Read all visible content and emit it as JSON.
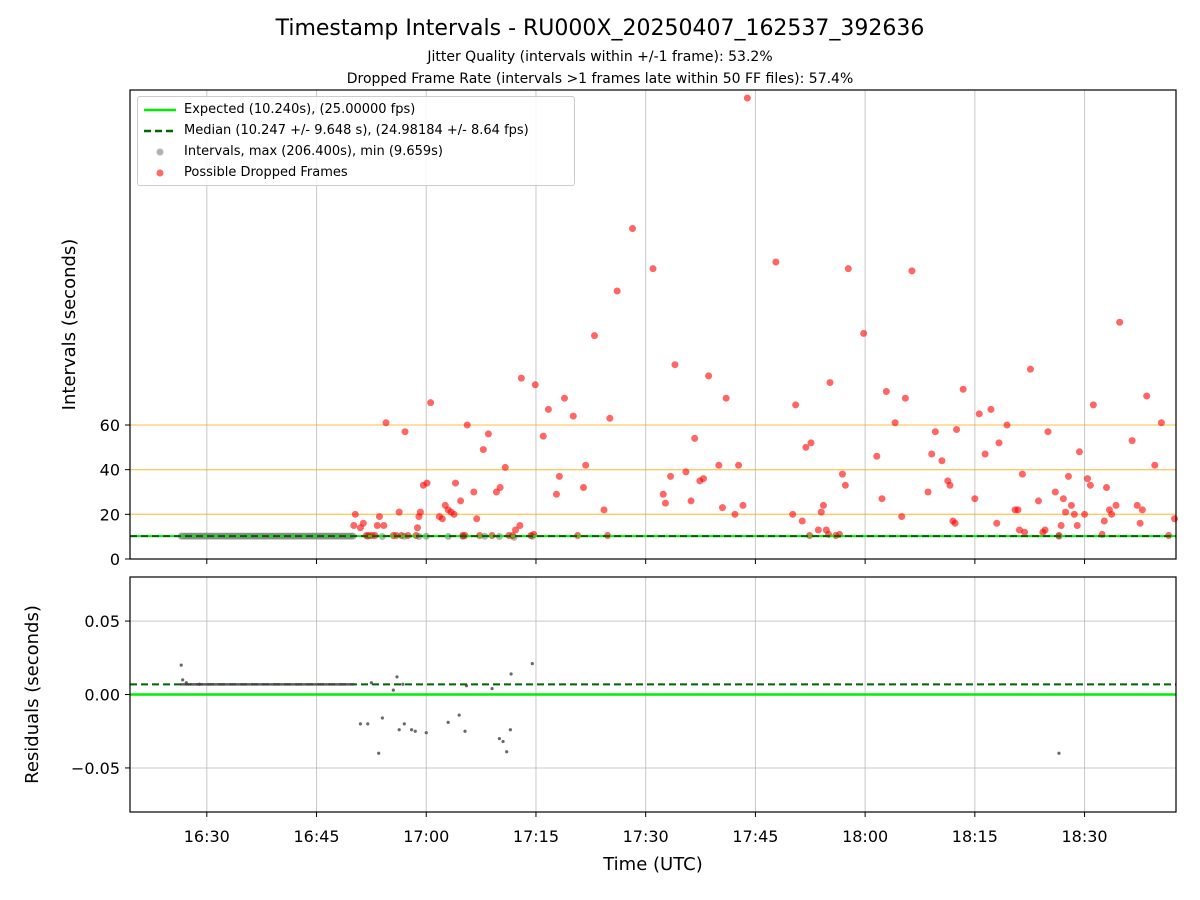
{
  "title": "Timestamp Intervals - RU000X_20250407_162537_392636",
  "subtitle1": "Jitter Quality (intervals within +/-1 frame): 53.2%",
  "subtitle2": "Dropped Frame Rate (intervals >1 frames late within 50 FF files): 57.4%",
  "colors": {
    "expected": "#00ee00",
    "median": "#006400",
    "intervals": "#808080",
    "dropped": "#ff0000",
    "threshold": "#ffa500",
    "grid": "#b0b0b0"
  },
  "legend": {
    "expected": "Expected (10.240s), (25.00000 fps)",
    "median": "Median (10.247 +/- 9.648 s), (24.98184 +/- 8.64 fps)",
    "intervals": "Intervals, max (206.400s), min (9.659s)",
    "dropped": "Possible Dropped Frames"
  },
  "chart_data": [
    {
      "type": "scatter",
      "ylabel": "Intervals (seconds)",
      "x_axis": "time of day (UTC, minutes)",
      "xlim": [
        "16:19.5",
        "18:42.5"
      ],
      "ylim": [
        0,
        210
      ],
      "yticks": [
        0,
        20,
        40,
        60
      ],
      "ytick_labels": [
        "0",
        "20",
        "40",
        "60"
      ],
      "threshold_lines": [
        20,
        40,
        60
      ],
      "expected_line": 10.24,
      "median_line": 10.247,
      "grid": true,
      "legend_position": "upper-left",
      "series": [
        {
          "name": "Intervals, max (206.400s), min (9.659s)",
          "dense_range": [
            "16:26.5",
            "16:50"
          ],
          "dense_value": 10.25,
          "points": [
            [
              "16:52",
              10.2
            ],
            [
              "16:54",
              10.1
            ],
            [
              "16:57",
              10.2
            ],
            [
              "16:59",
              10.1
            ],
            [
              "17:00",
              10.2
            ],
            [
              "17:03",
              10.1
            ],
            [
              "17:05",
              10.1
            ],
            [
              "17:08",
              10.2
            ],
            [
              "17:10",
              10.1
            ],
            [
              "17:12",
              9.7
            ],
            [
              "17:14.5",
              10.2
            ],
            [
              "18:26.5",
              10.2
            ]
          ]
        },
        {
          "name": "Possible Dropped Frames",
          "points": [
            [
              "16:50.1",
              15
            ],
            [
              "16:50.3",
              20
            ],
            [
              "16:51",
              14
            ],
            [
              "16:51.4",
              16
            ],
            [
              "16:51.8",
              10.5
            ],
            [
              "16:52.2",
              10.5
            ],
            [
              "16:52.6",
              10.5
            ],
            [
              "16:53",
              10.5
            ],
            [
              "16:53.3",
              15
            ],
            [
              "16:53.6",
              19
            ],
            [
              "16:54.2",
              15
            ],
            [
              "16:54.5",
              61
            ],
            [
              "16:55.5",
              10.5
            ],
            [
              "16:55.9",
              10.5
            ],
            [
              "16:56.3",
              21
            ],
            [
              "16:56.6",
              10.5
            ],
            [
              "16:57.1",
              57
            ],
            [
              "16:57.5",
              10.5
            ],
            [
              "16:58.6",
              10.5
            ],
            [
              "16:58.8",
              14
            ],
            [
              "16:59",
              19
            ],
            [
              "16:59.2",
              21
            ],
            [
              "16:59.6",
              33
            ],
            [
              "17:00.1",
              34
            ],
            [
              "17:00.6",
              70
            ],
            [
              "17:01.8",
              19
            ],
            [
              "17:02.2",
              18
            ],
            [
              "17:02.6",
              24
            ],
            [
              "17:03",
              22
            ],
            [
              "17:03.4",
              21
            ],
            [
              "17:03.8",
              20
            ],
            [
              "17:04",
              34
            ],
            [
              "17:04.7",
              26
            ],
            [
              "17:05",
              10.5
            ],
            [
              "17:05.3",
              10.5
            ],
            [
              "17:05.6",
              60
            ],
            [
              "17:06.5",
              30
            ],
            [
              "17:06.9",
              18
            ],
            [
              "17:07.3",
              10.5
            ],
            [
              "17:07.8",
              49
            ],
            [
              "17:08.5",
              56
            ],
            [
              "17:09",
              10.5
            ],
            [
              "17:09.6",
              30
            ],
            [
              "17:10.1",
              32
            ],
            [
              "17:10.8",
              41
            ],
            [
              "17:11.3",
              10.5
            ],
            [
              "17:11.8",
              10.5
            ],
            [
              "17:12.2",
              13
            ],
            [
              "17:12.8",
              15
            ],
            [
              "17:13",
              81
            ],
            [
              "17:14.3",
              10.5
            ],
            [
              "17:14.7",
              11
            ],
            [
              "17:14.9",
              78
            ],
            [
              "17:16",
              55
            ],
            [
              "17:16.7",
              67
            ],
            [
              "17:17.8",
              29
            ],
            [
              "17:18.2",
              37
            ],
            [
              "17:18.9",
              72
            ],
            [
              "17:20.1",
              64
            ],
            [
              "17:20.7",
              10.5
            ],
            [
              "17:21.5",
              32
            ],
            [
              "17:21.8",
              42
            ],
            [
              "17:23",
              100
            ],
            [
              "17:24.3",
              22
            ],
            [
              "17:24.8",
              10.5
            ],
            [
              "17:25.1",
              63
            ],
            [
              "17:26.1",
              120
            ],
            [
              "17:28.2",
              148
            ],
            [
              "17:31",
              130
            ],
            [
              "17:32.4",
              29
            ],
            [
              "17:32.7",
              25
            ],
            [
              "17:33.4",
              37
            ],
            [
              "17:34",
              87
            ],
            [
              "17:35.5",
              39
            ],
            [
              "17:36.2",
              26
            ],
            [
              "17:36.7",
              54
            ],
            [
              "17:37.4",
              35
            ],
            [
              "17:37.9",
              36
            ],
            [
              "17:38.6",
              82
            ],
            [
              "17:40",
              42
            ],
            [
              "17:40.5",
              23
            ],
            [
              "17:41",
              72
            ],
            [
              "17:42.2",
              20
            ],
            [
              "17:42.7",
              42
            ],
            [
              "17:43.3",
              24
            ],
            [
              "17:43.9",
              206.4
            ],
            [
              "17:47.8",
              133
            ],
            [
              "17:50.1",
              20
            ],
            [
              "17:50.5",
              69
            ],
            [
              "17:51.4",
              17
            ],
            [
              "17:51.9",
              50
            ],
            [
              "17:52.4",
              10.5
            ],
            [
              "17:52.6",
              52
            ],
            [
              "17:53.6",
              13
            ],
            [
              "17:54",
              21
            ],
            [
              "17:54.3",
              24
            ],
            [
              "17:54.7",
              13
            ],
            [
              "17:55",
              11
            ],
            [
              "17:55.2",
              79
            ],
            [
              "17:56",
              10.5
            ],
            [
              "17:56.5",
              11
            ],
            [
              "17:56.9",
              38
            ],
            [
              "17:57.3",
              33
            ],
            [
              "17:57.7",
              130
            ],
            [
              "17:59.8",
              101
            ],
            [
              "18:01.6",
              46
            ],
            [
              "18:02.3",
              27
            ],
            [
              "18:02.9",
              75
            ],
            [
              "18:04.1",
              61
            ],
            [
              "18:05",
              19
            ],
            [
              "18:05.5",
              72
            ],
            [
              "18:06.4",
              129
            ],
            [
              "18:08.6",
              30
            ],
            [
              "18:09.1",
              47
            ],
            [
              "18:09.6",
              57
            ],
            [
              "18:10.5",
              44
            ],
            [
              "18:11.3",
              35
            ],
            [
              "18:11.6",
              33
            ],
            [
              "18:12",
              17
            ],
            [
              "18:12.3",
              16
            ],
            [
              "18:12.5",
              58
            ],
            [
              "18:13.4",
              76
            ],
            [
              "18:15",
              27
            ],
            [
              "18:15.6",
              65
            ],
            [
              "18:16.4",
              47
            ],
            [
              "18:17.2",
              67
            ],
            [
              "18:18",
              16
            ],
            [
              "18:18.3",
              52
            ],
            [
              "18:19.4",
              60
            ],
            [
              "18:20.5",
              22
            ],
            [
              "18:20.9",
              22
            ],
            [
              "18:21.1",
              13
            ],
            [
              "18:21.5",
              38
            ],
            [
              "18:21.8",
              12
            ],
            [
              "18:22.6",
              85
            ],
            [
              "18:23.7",
              26
            ],
            [
              "18:24.3",
              12
            ],
            [
              "18:24.6",
              13
            ],
            [
              "18:25",
              57
            ],
            [
              "18:26",
              30
            ],
            [
              "18:26.5",
              10.5
            ],
            [
              "18:26.8",
              15
            ],
            [
              "18:27.1",
              27
            ],
            [
              "18:27.4",
              21
            ],
            [
              "18:27.8",
              37
            ],
            [
              "18:28.2",
              24
            ],
            [
              "18:28.6",
              20
            ],
            [
              "18:29",
              15
            ],
            [
              "18:29.3",
              48
            ],
            [
              "18:30",
              20
            ],
            [
              "18:30.4",
              36
            ],
            [
              "18:30.8",
              33
            ],
            [
              "18:31.2",
              69
            ],
            [
              "18:32.4",
              11
            ],
            [
              "18:32.7",
              17
            ],
            [
              "18:33",
              32
            ],
            [
              "18:33.4",
              22
            ],
            [
              "18:33.7",
              20
            ],
            [
              "18:34.3",
              24
            ],
            [
              "18:34.8",
              106
            ],
            [
              "18:36.5",
              53
            ],
            [
              "18:37.2",
              24
            ],
            [
              "18:37.6",
              16
            ],
            [
              "18:37.9",
              22
            ],
            [
              "18:38.5",
              73
            ],
            [
              "18:39.6",
              42
            ],
            [
              "18:40.5",
              61
            ],
            [
              "18:41.5",
              10.5
            ],
            [
              "18:42.3",
              18
            ]
          ]
        }
      ]
    },
    {
      "type": "scatter",
      "xlabel": "Time (UTC)",
      "ylabel": "Residuals (seconds)",
      "xlim": [
        "16:19.5",
        "18:42.5"
      ],
      "ylim": [
        -0.08,
        0.08
      ],
      "yticks": [
        -0.05,
        0.0,
        0.05
      ],
      "ytick_labels": [
        "−0.05",
        "0.00",
        "0.05"
      ],
      "xtick_labels": [
        "16:30",
        "16:45",
        "17:00",
        "17:15",
        "17:30",
        "17:45",
        "18:00",
        "18:15",
        "18:30"
      ],
      "xticks": [
        "16:30",
        "16:45",
        "17:00",
        "17:15",
        "17:30",
        "17:45",
        "18:00",
        "18:15",
        "18:30"
      ],
      "zero_line": 0.0,
      "median_offset": 0.0069,
      "grid": true,
      "series": [
        {
          "name": "residuals",
          "dense_range": [
            "16:26.5",
            "16:50"
          ],
          "dense_value": 0.0069,
          "points": [
            [
              "16:26.5",
              0.02
            ],
            [
              "16:26.7",
              0.01
            ],
            [
              "16:27.2",
              0.008
            ],
            [
              "16:29",
              0.007
            ],
            [
              "16:51",
              -0.02
            ],
            [
              "16:52",
              -0.02
            ],
            [
              "16:52.5",
              0.008
            ],
            [
              "16:53.5",
              -0.04
            ],
            [
              "16:54",
              -0.016
            ],
            [
              "16:55.5",
              0.003
            ],
            [
              "16:56",
              0.012
            ],
            [
              "16:56.3",
              -0.024
            ],
            [
              "16:56.8",
              0.007
            ],
            [
              "16:57",
              -0.02
            ],
            [
              "16:58",
              -0.024
            ],
            [
              "16:58.5",
              -0.025
            ],
            [
              "17:00",
              -0.026
            ],
            [
              "17:03",
              -0.019
            ],
            [
              "17:04.5",
              -0.014
            ],
            [
              "17:05.3",
              -0.025
            ],
            [
              "17:05.5",
              0.006
            ],
            [
              "17:09",
              0.004
            ],
            [
              "17:10",
              -0.03
            ],
            [
              "17:10.5",
              -0.032
            ],
            [
              "17:11",
              -0.039
            ],
            [
              "17:11.5",
              -0.024
            ],
            [
              "17:11.6",
              0.014
            ],
            [
              "17:14.5",
              0.021
            ],
            [
              "18:26.5",
              -0.04
            ]
          ]
        }
      ]
    }
  ]
}
